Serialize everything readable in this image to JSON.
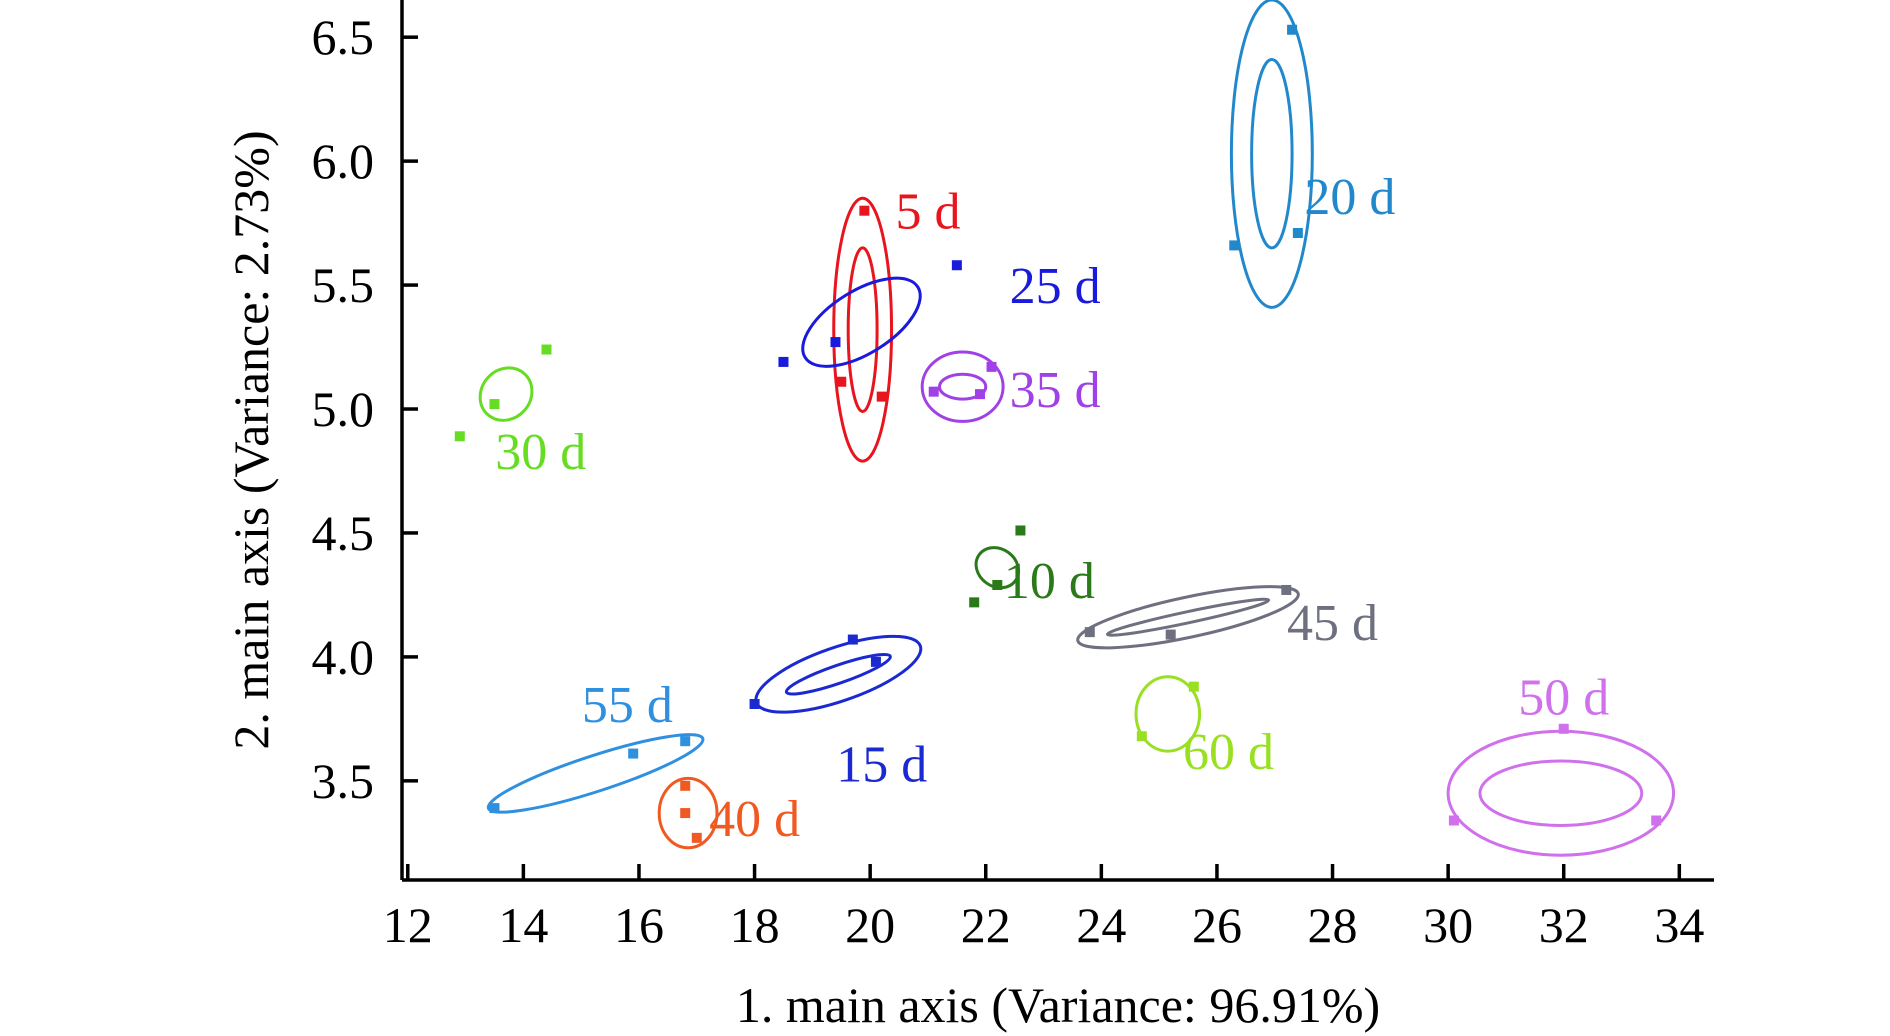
{
  "chart_data": {
    "type": "scatter",
    "title": "",
    "xlabel": "1. main axis (Variance: 96.91%)",
    "ylabel": "2. main axis (Variance: 2.73%)",
    "xlim": [
      11.9,
      34.6
    ],
    "ylim": [
      3.1,
      6.65
    ],
    "xticks": [
      12,
      14,
      16,
      18,
      20,
      22,
      24,
      26,
      28,
      30,
      32,
      34
    ],
    "xtick_labels": [
      "12",
      "14",
      "16",
      "18",
      "20",
      "22",
      "24",
      "26",
      "28",
      "30",
      "32",
      "34"
    ],
    "yticks": [
      3.5,
      4.0,
      4.5,
      5.0,
      5.5,
      6.0,
      6.5
    ],
    "ytick_labels": [
      "3.5",
      "4.0",
      "4.5",
      "5.0",
      "5.5",
      "6.0",
      "6.5"
    ],
    "series": [
      {
        "name": "5 d",
        "label": "5 d",
        "color": "#e8141e",
        "label_pos": [
          21.0,
          5.8
        ],
        "points": [
          [
            19.9,
            5.8
          ],
          [
            19.5,
            5.11
          ],
          [
            20.2,
            5.05
          ]
        ],
        "outer": {
          "cx": 19.87,
          "cy": 5.32,
          "rx": 0.5,
          "ry": 0.53,
          "angle": 0
        },
        "inner": {
          "cx": 19.87,
          "cy": 5.32,
          "rx": 0.25,
          "ry": 0.33,
          "angle": 0
        }
      },
      {
        "name": "25 d",
        "label": "25 d",
        "color": "#1a1adc",
        "label_pos": [
          23.2,
          5.5
        ],
        "points": [
          [
            21.5,
            5.58
          ],
          [
            18.5,
            5.19
          ],
          [
            19.4,
            5.27
          ]
        ],
        "outer": {
          "cx": 19.85,
          "cy": 5.35,
          "rx": 2.3,
          "ry": 0.14,
          "angle": -32
        }
      },
      {
        "name": "35 d",
        "label": "35 d",
        "color": "#a040e6",
        "label_pos": [
          23.2,
          5.08
        ],
        "points": [
          [
            22.1,
            5.17
          ],
          [
            21.1,
            5.07
          ],
          [
            21.9,
            5.06
          ]
        ],
        "outer": {
          "cx": 21.6,
          "cy": 5.09,
          "rx": 0.7,
          "ry": 0.14,
          "angle": 0
        },
        "inner": {
          "cx": 21.6,
          "cy": 5.09,
          "rx": 0.4,
          "ry": 0.05,
          "angle": 0
        }
      },
      {
        "name": "30 d",
        "label": "30 d",
        "color": "#66dd22",
        "label_pos": [
          14.3,
          4.83
        ],
        "points": [
          [
            14.4,
            5.24
          ],
          [
            13.5,
            5.02
          ],
          [
            12.9,
            4.89
          ]
        ],
        "outer": {
          "cx": 13.7,
          "cy": 5.06,
          "rx": 0.95,
          "ry": 0.11,
          "angle": -48
        }
      },
      {
        "name": "20 d",
        "label": "20 d",
        "color": "#2288cc",
        "label_pos": [
          28.3,
          5.86
        ],
        "points": [
          [
            27.3,
            6.53
          ],
          [
            26.3,
            5.66
          ],
          [
            27.4,
            5.71
          ]
        ],
        "outer": {
          "cx": 26.95,
          "cy": 6.03,
          "rx": 0.7,
          "ry": 0.62,
          "angle": 0
        },
        "inner": {
          "cx": 26.95,
          "cy": 6.03,
          "rx": 0.35,
          "ry": 0.38,
          "angle": 0
        }
      },
      {
        "name": "10 d",
        "label": "10 d",
        "color": "#2a7a1a",
        "label_pos": [
          23.1,
          4.31
        ],
        "points": [
          [
            22.6,
            4.51
          ],
          [
            21.8,
            4.22
          ],
          [
            22.2,
            4.29
          ]
        ],
        "outer": {
          "cx": 22.2,
          "cy": 4.36,
          "rx": 0.65,
          "ry": 0.1,
          "angle": -55
        }
      },
      {
        "name": "45 d",
        "label": "45 d",
        "color": "#6e7080",
        "label_pos": [
          28.0,
          4.14
        ],
        "points": [
          [
            27.2,
            4.27
          ],
          [
            23.8,
            4.1
          ],
          [
            25.2,
            4.09
          ]
        ],
        "outer": {
          "cx": 25.5,
          "cy": 4.16,
          "rx": 3.9,
          "ry": 0.09,
          "angle": -12
        },
        "inner": {
          "cx": 25.5,
          "cy": 4.16,
          "rx": 2.85,
          "ry": 0.025,
          "angle": -12
        }
      },
      {
        "name": "60 d",
        "label": "60 d",
        "color": "#99e022",
        "label_pos": [
          26.2,
          3.62
        ],
        "points": [
          [
            25.6,
            3.88
          ],
          [
            24.7,
            3.68
          ]
        ],
        "outer": {
          "cx": 25.15,
          "cy": 3.77,
          "rx": 0.55,
          "ry": 0.15,
          "angle": 0
        }
      },
      {
        "name": "15 d",
        "label": "15 d",
        "color": "#1a2ad0",
        "label_pos": [
          20.2,
          3.57
        ],
        "points": [
          [
            19.7,
            4.07
          ],
          [
            20.1,
            3.98
          ],
          [
            18.0,
            3.81
          ]
        ],
        "outer": {
          "cx": 19.45,
          "cy": 3.93,
          "rx": 3.0,
          "ry": 0.12,
          "angle": -19
        },
        "inner": {
          "cx": 19.45,
          "cy": 3.93,
          "rx": 1.9,
          "ry": 0.04,
          "angle": -19
        }
      },
      {
        "name": "55 d",
        "label": "55 d",
        "color": "#3090e0",
        "label_pos": [
          15.8,
          3.81
        ],
        "points": [
          [
            16.8,
            3.66
          ],
          [
            15.9,
            3.61
          ],
          [
            13.5,
            3.39
          ]
        ],
        "outer": {
          "cx": 15.25,
          "cy": 3.53,
          "rx": 3.9,
          "ry": 0.08,
          "angle": -18
        }
      },
      {
        "name": "40 d",
        "label": "40 d",
        "color": "#f05a22",
        "label_pos": [
          18.0,
          3.35
        ],
        "points": [
          [
            16.8,
            3.48
          ],
          [
            16.8,
            3.37
          ],
          [
            17.0,
            3.27
          ]
        ],
        "outer": {
          "cx": 16.85,
          "cy": 3.37,
          "rx": 0.5,
          "ry": 0.14,
          "angle": 0
        }
      },
      {
        "name": "50 d",
        "label": "50 d",
        "color": "#d070ec",
        "label_pos": [
          32.0,
          3.84
        ],
        "points": [
          [
            32.0,
            3.71
          ],
          [
            30.1,
            3.34
          ],
          [
            33.6,
            3.34
          ]
        ],
        "outer": {
          "cx": 31.95,
          "cy": 3.45,
          "rx": 1.95,
          "ry": 0.25,
          "angle": 0
        },
        "inner": {
          "cx": 31.95,
          "cy": 3.45,
          "rx": 1.4,
          "ry": 0.13,
          "angle": 0
        }
      }
    ]
  }
}
